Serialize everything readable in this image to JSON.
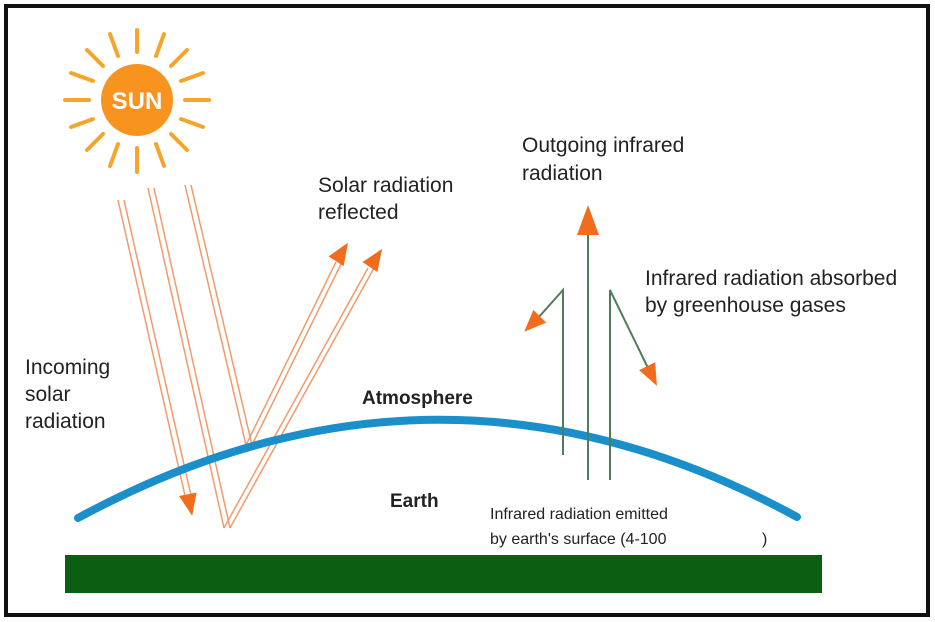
{
  "sun": {
    "label": "SUN"
  },
  "labels": {
    "incoming": [
      "Incoming",
      "solar",
      "radiation"
    ],
    "reflected": [
      "Solar radiation",
      "reflected"
    ],
    "outgoing": [
      "Outgoing infrared",
      "radiation"
    ],
    "absorbed": [
      "Infrared radiation absorbed",
      "by greenhouse gases"
    ],
    "atmosphere": "Atmosphere",
    "earth": "Earth",
    "emitted": [
      "Infrared radiation emitted",
      "by earth's surface (4-100"
    ],
    "emitted_close": ")"
  }
}
